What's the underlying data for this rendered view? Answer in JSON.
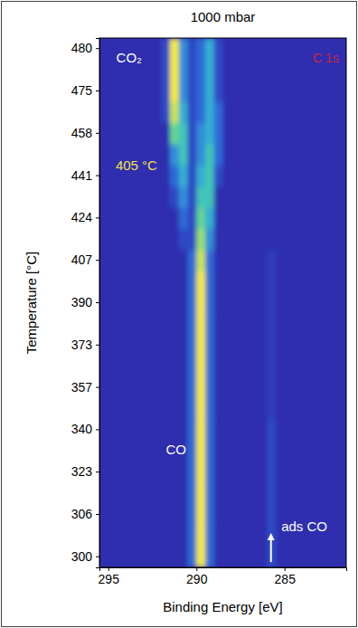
{
  "chart_data": {
    "type": "heatmap",
    "title": "1000 mbar",
    "x_label": "Binding Energy [eV]",
    "y_label": "Temperature [°C]",
    "annotations": [
      "CO₂",
      "C 1s",
      "405 °C",
      "CO",
      "ads CO"
    ],
    "x": [
      295.25,
      294.75,
      294.25,
      293.75,
      293.25,
      292.75,
      292.25,
      291.75,
      291.25,
      290.75,
      290.25,
      289.75,
      289.25,
      288.75,
      288.25,
      287.75,
      287.25,
      286.75,
      286.25,
      285.75,
      285.25,
      284.75,
      284.25,
      283.75,
      283.25,
      282.75,
      282.25,
      281.75
    ],
    "xlim": [
      295.5,
      281.5
    ],
    "xticks": [
      295,
      290,
      285
    ],
    "categories": [
      300,
      null,
      306,
      null,
      323,
      null,
      340,
      null,
      357,
      null,
      373,
      null,
      390,
      null,
      407,
      null,
      424,
      null,
      441,
      null,
      458,
      null,
      475,
      null,
      480
    ],
    "grid": false,
    "values": [
      [
        1,
        1,
        1,
        1,
        1,
        1,
        1,
        1,
        1,
        1,
        3,
        10,
        3,
        1,
        1,
        1,
        1,
        1,
        1,
        2,
        1,
        1,
        1,
        1,
        1,
        1,
        1,
        1
      ],
      [
        1,
        1,
        1,
        1,
        1,
        1,
        1,
        1,
        1,
        1,
        3,
        10,
        3,
        1,
        1,
        1,
        1,
        1,
        1,
        2,
        1,
        1,
        1,
        1,
        1,
        1,
        1,
        1
      ],
      [
        1,
        1,
        1,
        1,
        1,
        1,
        1,
        1,
        1,
        1,
        3,
        10,
        3,
        1,
        1,
        1,
        1,
        1,
        1,
        2,
        1,
        1,
        1,
        1,
        1,
        1,
        1,
        1
      ],
      [
        1,
        1,
        1,
        1,
        1,
        1,
        1,
        1,
        1,
        1,
        3,
        10,
        3,
        1,
        1,
        1,
        1,
        1,
        1,
        2,
        1,
        1,
        1,
        1,
        1,
        1,
        1,
        1
      ],
      [
        1,
        1,
        1,
        1,
        1,
        1,
        1,
        1,
        1,
        1,
        3,
        10,
        3,
        1,
        1,
        1,
        1,
        1,
        1,
        2,
        1,
        1,
        1,
        1,
        1,
        1,
        1,
        1
      ],
      [
        1,
        1,
        1,
        1,
        1,
        1,
        1,
        1,
        1,
        1,
        3,
        10,
        3,
        1,
        1,
        1,
        1,
        1,
        1,
        2,
        1,
        1,
        1,
        1,
        1,
        1,
        1,
        1
      ],
      [
        1,
        1,
        1,
        1,
        1,
        1,
        1,
        1,
        1,
        1,
        3,
        10,
        3,
        1,
        1,
        1,
        1,
        1,
        1,
        2,
        1,
        1,
        1,
        1,
        1,
        1,
        1,
        1
      ],
      [
        1,
        1,
        1,
        1,
        1,
        1,
        1,
        1,
        1,
        1,
        3,
        10,
        3,
        1,
        1,
        1,
        1,
        1,
        1,
        1.5,
        1,
        1,
        1,
        1,
        1,
        1,
        1,
        1
      ],
      [
        1,
        1,
        1,
        1,
        1,
        1,
        1,
        1,
        1,
        1,
        3,
        10,
        3,
        1,
        1,
        1,
        1,
        1,
        1,
        1.5,
        1,
        1,
        1,
        1,
        1,
        1,
        1,
        1
      ],
      [
        1,
        1,
        1,
        1,
        1,
        1,
        1,
        1,
        1,
        1,
        3,
        10,
        3,
        1,
        1,
        1,
        1,
        1,
        1,
        1.5,
        1,
        1,
        1,
        1,
        1,
        1,
        1,
        1
      ],
      [
        1,
        1,
        1,
        1,
        1,
        1,
        1,
        1,
        1,
        1,
        3,
        10,
        3,
        1,
        1,
        1,
        1,
        1,
        1,
        1.5,
        1,
        1,
        1,
        1,
        1,
        1,
        1,
        1
      ],
      [
        1,
        1,
        1,
        1,
        1,
        1,
        1,
        1,
        1,
        1,
        3,
        10,
        3,
        1,
        1,
        1,
        1,
        1,
        1,
        1.5,
        1,
        1,
        1,
        1,
        1,
        1,
        1,
        1
      ],
      [
        1,
        1,
        1,
        1,
        1,
        1,
        1,
        1,
        1,
        1,
        3,
        10,
        3,
        1,
        1,
        1,
        1,
        1,
        1,
        1.5,
        1,
        1,
        1,
        1,
        1,
        1,
        1,
        1
      ],
      [
        1,
        1,
        1,
        1,
        1,
        1,
        1,
        1,
        1,
        1,
        3,
        10,
        3,
        1,
        1,
        1,
        1,
        1,
        1,
        1.5,
        1,
        1,
        1,
        1,
        1,
        1,
        1,
        1
      ],
      [
        1,
        1,
        1,
        1,
        1,
        1,
        1,
        1,
        1,
        1,
        3,
        9,
        3,
        1,
        1,
        1,
        1,
        1,
        1,
        1.5,
        1,
        1,
        1,
        1,
        1,
        1,
        1,
        1
      ],
      [
        1,
        1,
        1,
        1,
        1,
        1,
        1,
        1,
        1,
        2,
        2,
        8,
        4,
        1,
        1,
        1,
        1,
        1,
        1,
        1,
        1,
        1,
        1,
        1,
        1,
        1,
        1,
        1
      ],
      [
        1,
        1,
        1,
        1,
        1,
        1,
        1,
        1,
        1,
        3,
        2,
        7,
        5,
        1,
        1,
        1,
        1,
        1,
        1,
        1,
        1,
        1,
        1,
        1,
        1,
        1,
        1,
        1
      ],
      [
        1,
        1,
        1,
        1,
        1,
        1,
        1,
        1,
        2,
        4,
        2,
        6,
        6,
        1,
        1,
        1,
        1,
        1,
        1,
        1,
        1,
        1,
        1,
        1,
        1,
        1,
        1,
        1
      ],
      [
        1,
        1,
        1,
        1,
        1,
        1,
        1,
        1,
        3,
        5,
        2,
        5,
        6,
        2,
        1,
        1,
        1,
        1,
        1,
        1,
        1,
        1,
        1,
        1,
        1,
        1,
        1,
        1
      ],
      [
        1,
        1,
        1,
        1,
        1,
        1,
        1,
        1,
        4,
        6,
        2,
        4,
        6,
        3,
        1,
        1,
        1,
        1,
        1,
        1,
        1,
        1,
        1,
        1,
        1,
        1,
        1,
        1
      ],
      [
        1,
        1,
        1,
        1,
        1,
        1,
        1,
        1,
        7,
        6,
        2,
        4,
        5,
        3,
        1,
        1,
        1,
        1,
        1,
        1,
        1,
        1,
        1,
        1,
        1,
        1,
        1,
        1
      ],
      [
        1,
        1,
        1,
        1,
        1,
        1,
        1,
        2,
        9,
        5,
        2,
        3,
        5,
        3,
        1,
        1,
        1,
        1,
        1,
        1,
        1,
        1,
        1,
        1,
        1,
        1,
        1,
        1
      ],
      [
        1,
        1,
        1,
        1,
        1,
        1,
        1,
        2,
        10,
        4,
        2,
        3,
        5,
        2,
        1,
        1,
        1,
        1,
        1,
        1,
        1,
        1,
        1,
        1,
        1,
        1,
        1,
        1
      ],
      [
        1,
        1,
        1,
        1,
        1,
        1,
        1,
        2,
        10,
        4,
        2,
        3,
        5,
        2,
        1,
        1,
        1,
        1,
        1,
        1,
        1,
        1,
        1,
        1,
        1,
        1,
        1,
        1
      ],
      [
        1,
        1,
        1,
        1,
        1,
        1,
        1,
        2,
        10,
        4,
        2,
        3,
        5,
        2,
        1,
        1,
        1,
        1,
        1,
        1,
        1,
        1,
        1,
        1,
        1,
        1,
        1,
        1
      ]
    ]
  }
}
